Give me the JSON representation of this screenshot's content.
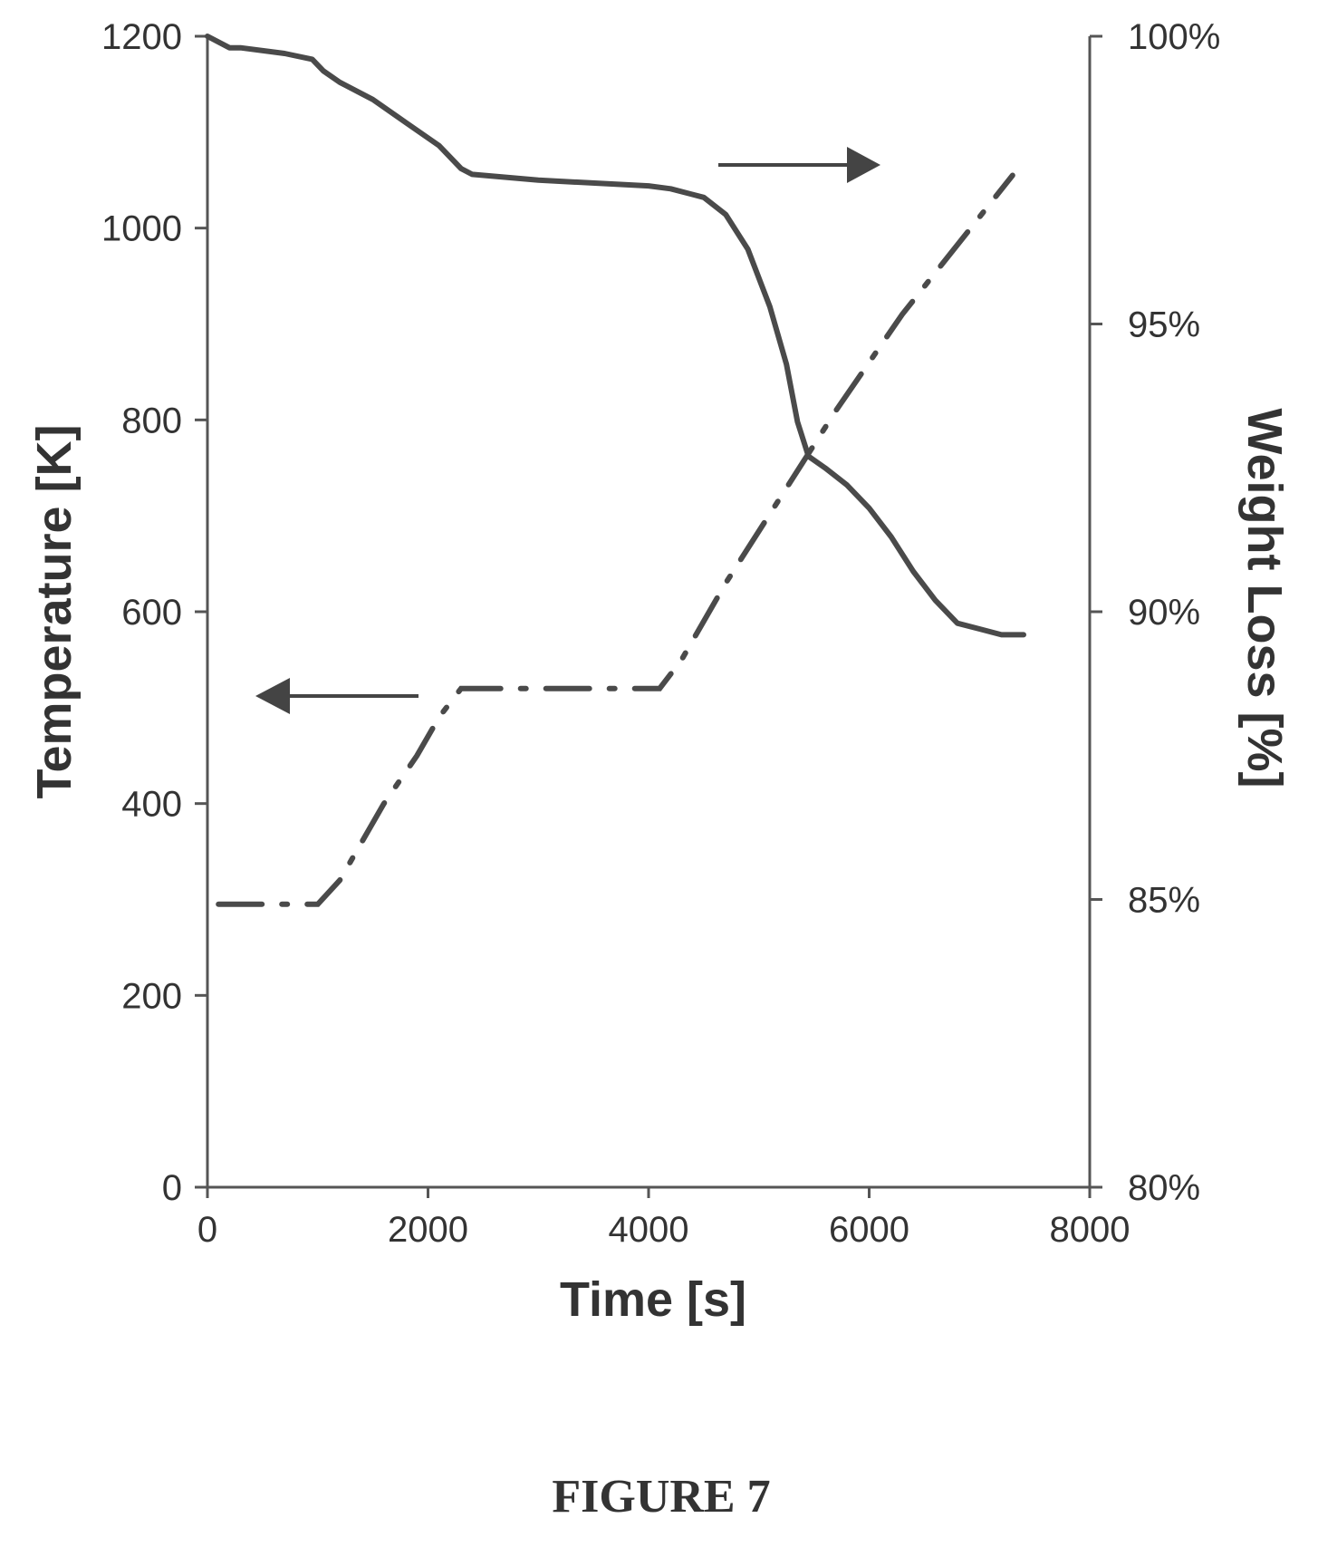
{
  "chart_data": {
    "type": "line",
    "title": "",
    "xlabel": "Time [s]",
    "ylabel_left": "Temperature [K]",
    "ylabel_right": "Weight Loss [%]",
    "xlim": [
      0,
      8000
    ],
    "ylim_left": [
      0,
      1200
    ],
    "ylim_right": [
      80,
      100
    ],
    "x_ticks": [
      "0",
      "2000",
      "4000",
      "6000",
      "8000"
    ],
    "y_left_ticks": [
      "0",
      "200",
      "400",
      "600",
      "800",
      "1000",
      "1200"
    ],
    "y_right_ticks": [
      "80%",
      "85%",
      "90%",
      "95%",
      "100%"
    ],
    "grid": false,
    "series": [
      {
        "axis": "right",
        "style": "solid",
        "x": [
          0,
          200,
          300,
          700,
          950,
          1050,
          1200,
          1500,
          1800,
          2100,
          2300,
          2400,
          3000,
          4000,
          4200,
          4500,
          4700,
          4900,
          5100,
          5250,
          5350,
          5450,
          5600,
          5800,
          6000,
          6200,
          6400,
          6600,
          6800,
          7000,
          7200,
          7400
        ],
        "values": [
          100,
          99.8,
          99.8,
          99.7,
          99.6,
          99.4,
          99.2,
          98.9,
          98.5,
          98.1,
          97.7,
          97.6,
          97.5,
          97.4,
          97.35,
          97.2,
          96.9,
          96.3,
          95.3,
          94.3,
          93.3,
          92.7,
          92.5,
          92.2,
          91.8,
          91.3,
          90.7,
          90.2,
          89.8,
          89.7,
          89.6,
          89.6
        ]
      },
      {
        "axis": "left",
        "style": "dash-dot",
        "x": [
          100,
          1000,
          1200,
          1600,
          1900,
          2100,
          2300,
          4100,
          4300,
          4700,
          5200,
          5700,
          6300,
          7300
        ],
        "values": [
          295,
          295,
          320,
          400,
          450,
          490,
          520,
          520,
          550,
          630,
          720,
          810,
          910,
          1055
        ]
      }
    ]
  },
  "caption": "FIGURE 7"
}
